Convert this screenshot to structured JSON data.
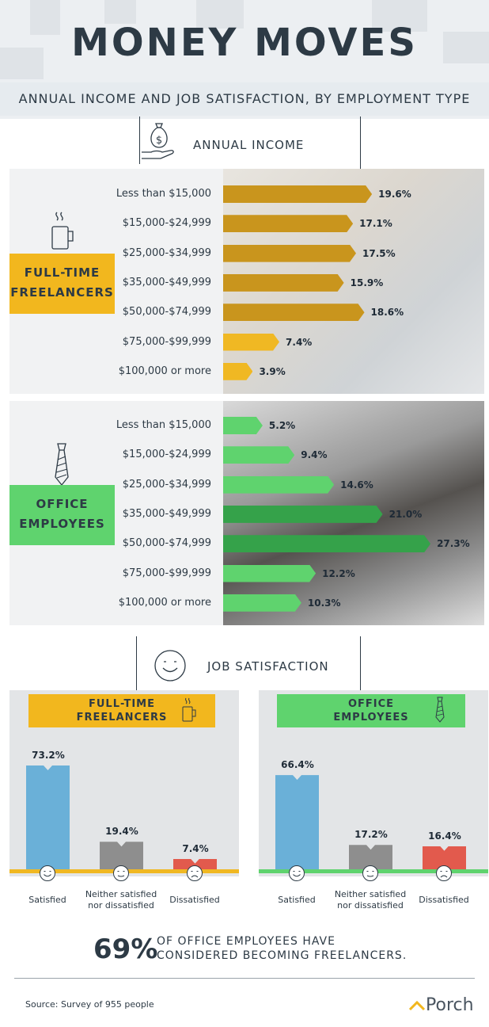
{
  "header": {
    "title": "MONEY MOVES",
    "subtitle": "ANNUAL INCOME AND JOB SATISFACTION, BY EMPLOYMENT TYPE"
  },
  "sections": {
    "income_label": "ANNUAL INCOME",
    "satisfaction_label": "JOB SATISFACTION"
  },
  "groups": {
    "freelancers_label": "FULL-TIME FREELANCERS",
    "office_label": "OFFICE EMPLOYEES"
  },
  "colors": {
    "freelancer_dark": "#c9951d",
    "freelancer_light": "#f0b823",
    "office_dark": "#35a24a",
    "office_light": "#5fd36e",
    "satisfied": "#6ab0d8",
    "neither": "#8e8e8e",
    "dissatisfied": "#e25a4d",
    "freelancer_baseline": "#f0b823",
    "office_baseline": "#5fd36e"
  },
  "chart_data": [
    {
      "type": "bar",
      "orientation": "horizontal",
      "title": "FULL-TIME FREELANCERS",
      "categories": [
        "Less than $15,000",
        "$15,000-$24,999",
        "$25,000-$34,999",
        "$35,000-$49,999",
        "$50,000-$74,999",
        "$75,000-$99,999",
        "$100,000 or more"
      ],
      "values": [
        19.6,
        17.1,
        17.5,
        15.9,
        18.6,
        7.4,
        3.9
      ],
      "value_labels": [
        "19.6%",
        "17.1%",
        "17.5%",
        "15.9%",
        "18.6%",
        "7.4%",
        "3.9%"
      ],
      "unit": "%"
    },
    {
      "type": "bar",
      "orientation": "horizontal",
      "title": "OFFICE EMPLOYEES",
      "categories": [
        "Less than $15,000",
        "$15,000-$24,999",
        "$25,000-$34,999",
        "$35,000-$49,999",
        "$50,000-$74,999",
        "$75,000-$99,999",
        "$100,000 or more"
      ],
      "values": [
        5.2,
        9.4,
        14.6,
        21.0,
        27.3,
        12.2,
        10.3
      ],
      "value_labels": [
        "5.2%",
        "9.4%",
        "14.6%",
        "21.0%",
        "27.3%",
        "12.2%",
        "10.3%"
      ],
      "unit": "%"
    },
    {
      "type": "bar",
      "title": "FULL-TIME FREELANCERS",
      "categories": [
        "Satisfied",
        "Neither satisfied nor dissatisfied",
        "Dissatisfied"
      ],
      "values": [
        73.2,
        19.4,
        7.4
      ],
      "value_labels": [
        "73.2%",
        "19.4%",
        "7.4%"
      ],
      "unit": "%"
    },
    {
      "type": "bar",
      "title": "OFFICE EMPLOYEES",
      "categories": [
        "Satisfied",
        "Neither satisfied nor dissatisfied",
        "Dissatisfied"
      ],
      "values": [
        66.4,
        17.2,
        16.4
      ],
      "value_labels": [
        "66.4%",
        "17.2%",
        "16.4%"
      ],
      "unit": "%"
    }
  ],
  "satisfaction_labels": {
    "satisfied": "Satisfied",
    "neither_line1": "Neither satisfied",
    "neither_line2": "nor dissatisfied",
    "dissatisfied": "Dissatisfied"
  },
  "stat": {
    "value": "69%",
    "line1": "OF OFFICE EMPLOYEES HAVE",
    "line2": "CONSIDERED BECOMING FREELANCERS."
  },
  "footer": {
    "source": "Source: Survey of 955 people",
    "brand": "Porch"
  },
  "icons": [
    "money-bag-hand-icon",
    "coffee-cup-icon",
    "necktie-icon",
    "smiley-face-icon",
    "neutral-face-icon",
    "sad-face-icon"
  ]
}
